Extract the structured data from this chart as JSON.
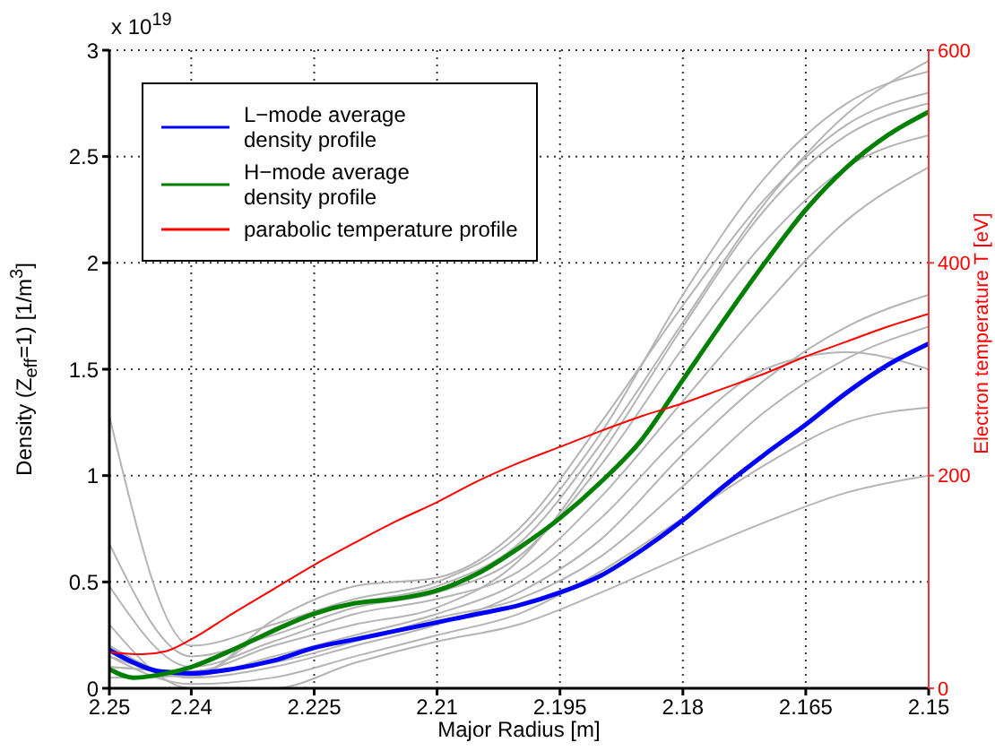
{
  "chart_data": {
    "type": "line",
    "xlabel": "Major Radius [m]",
    "ylabel": "Density (Z$_{eff}$=1) [1/m$^{3}$]",
    "y2label": "Electron temperature T [eV]",
    "annotations": [
      "x 10$^{19}$"
    ],
    "xlim": [
      2.25,
      2.15
    ],
    "xticks": [
      2.25,
      2.24,
      2.225,
      2.21,
      2.195,
      2.18,
      2.165,
      2.15
    ],
    "ylim": [
      0,
      3
    ],
    "yticks": [
      0,
      0.5,
      1,
      1.5,
      2,
      2.5,
      3
    ],
    "y2lim": [
      0,
      600
    ],
    "y2ticks": [
      0,
      200,
      400,
      600
    ],
    "grid": true,
    "legend": "top left",
    "marker": "none",
    "line_style": "solid",
    "x": [
      2.25,
      2.24,
      2.23,
      2.22,
      2.21,
      2.2,
      2.19,
      2.18,
      2.17,
      2.16,
      2.15
    ],
    "series": [
      {
        "color": "#b4b4b4",
        "values": [
          1.28,
          0.2,
          0.3,
          0.42,
          0.5,
          0.72,
          1.2,
          1.85,
          2.4,
          2.75,
          2.9
        ]
      },
      {
        "color": "#b4b4b4",
        "values": [
          0.68,
          0.15,
          0.25,
          0.38,
          0.45,
          0.62,
          1.05,
          1.6,
          2.1,
          2.45,
          2.6
        ]
      },
      {
        "color": "#b4b4b4",
        "values": [
          0.48,
          0.1,
          0.22,
          0.35,
          0.42,
          0.55,
          0.9,
          1.35,
          1.8,
          2.2,
          2.45
        ]
      },
      {
        "color": "#b4b4b4",
        "values": [
          0.2,
          0.05,
          0.32,
          0.48,
          0.52,
          0.75,
          1.25,
          1.8,
          2.3,
          2.65,
          2.8
        ]
      },
      {
        "color": "#b4b4b4",
        "values": [
          0.1,
          0.08,
          0.2,
          0.3,
          0.38,
          0.6,
          1.1,
          1.7,
          2.25,
          2.6,
          2.75
        ]
      },
      {
        "color": "#b4b4b4",
        "values": [
          0.05,
          0.06,
          0.28,
          0.4,
          0.48,
          0.68,
          1.15,
          1.72,
          2.28,
          2.7,
          2.95
        ]
      },
      {
        "color": "#b4b4b4",
        "values": [
          0.15,
          0.02,
          0.05,
          0.15,
          0.25,
          0.35,
          0.55,
          0.8,
          1.05,
          1.25,
          1.32
        ]
      },
      {
        "color": "#b4b4b4",
        "values": [
          0.2,
          0.05,
          0.1,
          0.2,
          0.3,
          0.45,
          0.7,
          1.1,
          1.45,
          1.7,
          1.85
        ]
      },
      {
        "color": "#b4b4b4",
        "values": [
          0.1,
          0.08,
          0.12,
          0.22,
          0.33,
          0.42,
          0.62,
          0.95,
          1.3,
          1.55,
          1.7
        ]
      },
      {
        "color": "#b4b4b4",
        "values": [
          0.3,
          0.0,
          0.0,
          0.12,
          0.22,
          0.3,
          0.45,
          0.62,
          0.78,
          0.92,
          1.0
        ]
      },
      {
        "color": "#b4b4b4",
        "values": [
          0.15,
          0.06,
          0.15,
          0.25,
          0.35,
          0.5,
          0.8,
          1.2,
          1.5,
          1.58,
          1.5
        ]
      },
      {
        "name": "L−mode average density profile",
        "color": "#0000ff",
        "x": [
          2.25,
          2.247,
          2.244,
          2.24,
          2.235,
          2.23,
          2.225,
          2.22,
          2.215,
          2.21,
          2.205,
          2.2,
          2.195,
          2.19,
          2.185,
          2.18,
          2.175,
          2.17,
          2.165,
          2.16,
          2.155,
          2.15
        ],
        "values": [
          0.18,
          0.12,
          0.08,
          0.07,
          0.09,
          0.13,
          0.19,
          0.23,
          0.27,
          0.31,
          0.35,
          0.39,
          0.45,
          0.53,
          0.65,
          0.79,
          0.95,
          1.1,
          1.24,
          1.39,
          1.52,
          1.62
        ]
      },
      {
        "name": "H−mode average density profile",
        "color": "#008000",
        "x": [
          2.25,
          2.247,
          2.243,
          2.24,
          2.235,
          2.23,
          2.225,
          2.22,
          2.215,
          2.21,
          2.205,
          2.2,
          2.195,
          2.19,
          2.185,
          2.18,
          2.175,
          2.17,
          2.165,
          2.16,
          2.155,
          2.15
        ],
        "values": [
          0.09,
          0.05,
          0.07,
          0.1,
          0.18,
          0.27,
          0.35,
          0.4,
          0.42,
          0.46,
          0.54,
          0.66,
          0.8,
          0.97,
          1.17,
          1.45,
          1.73,
          2.0,
          2.25,
          2.45,
          2.6,
          2.71
        ]
      },
      {
        "name": "parabolic temperature profile",
        "color": "#ff0000",
        "axis": "y2",
        "x": [
          2.25,
          2.246,
          2.243,
          2.24,
          2.235,
          2.23,
          2.225,
          2.22,
          2.215,
          2.21,
          2.205,
          2.2,
          2.195,
          2.19,
          2.185,
          2.18,
          2.175,
          2.17,
          2.165,
          2.16,
          2.155,
          2.15
        ],
        "values": [
          34,
          32,
          35,
          46,
          70,
          93,
          116,
          137,
          157,
          175,
          195,
          212,
          227,
          242,
          256,
          268,
          282,
          296,
          312,
          326,
          340,
          352
        ]
      }
    ]
  }
}
